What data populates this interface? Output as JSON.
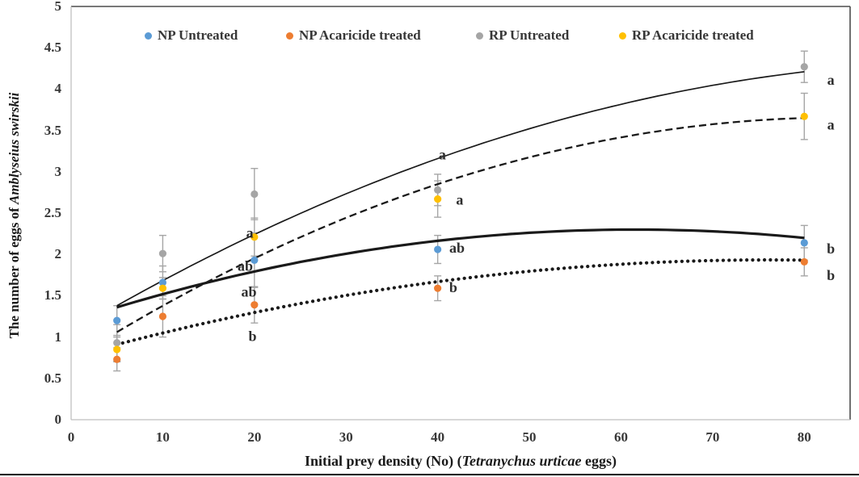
{
  "chart_data": {
    "type": "scatter",
    "description": "Scatter plot with fitted curves and error bars; eggs of Amblyseius swirskii vs initial prey density",
    "xlabel_prefix": "Initial prey density (No) (",
    "xlabel_italic": "Tetranychus urticae",
    "xlabel_suffix": " eggs)",
    "ylabel_prefix": "The number of eggs of ",
    "ylabel_italic": "Amblyseius swirskii",
    "xlim": [
      0,
      85
    ],
    "ylim": [
      0,
      5
    ],
    "grid": false,
    "legend_position": "top",
    "x_ticks": {
      "values": [
        0,
        10,
        20,
        30,
        40,
        50,
        60,
        70,
        80
      ],
      "labels": [
        "0",
        "10",
        "20",
        "30",
        "40",
        "50",
        "60",
        "70",
        "80"
      ]
    },
    "y_ticks": {
      "values": [
        0,
        0.5,
        1,
        1.5,
        2,
        2.5,
        3,
        3.5,
        4,
        4.5,
        5
      ],
      "labels": [
        "0",
        "0.5",
        "1",
        "1.5",
        "2",
        "2.5",
        "3",
        "3.5",
        "4",
        "4.5",
        "5"
      ]
    },
    "x": [
      5,
      10,
      20,
      40,
      80
    ],
    "series": [
      {
        "name": "NP Untreated",
        "color": "#5B9BD5",
        "y": [
          1.2,
          1.66,
          1.93,
          2.06,
          2.14
        ],
        "err": [
          0.18,
          0.2,
          0.33,
          0.17,
          0.21
        ],
        "fit": {
          "type": "quadratic",
          "a": -0.00029455,
          "b": 0.03623,
          "c": 1.18622
        },
        "line": {
          "width": 3.2,
          "dash": "solid"
        }
      },
      {
        "name": "NP Acaricide treated",
        "color": "#ED7D31",
        "y": [
          0.73,
          1.25,
          1.39,
          1.59,
          1.91
        ],
        "err": [
          0.14,
          0.25,
          0.22,
          0.15,
          0.17
        ],
        "fit": {
          "type": "quadratic",
          "a": -0.00020286,
          "b": 0.030843,
          "c": 0.760857
        },
        "line": {
          "width": 4.2,
          "dash": "dot"
        }
      },
      {
        "name": "RP Untreated",
        "color": "#A5A5A5",
        "y": [
          0.93,
          2.01,
          2.73,
          2.78,
          4.27
        ],
        "err": [
          0.22,
          0.22,
          0.31,
          0.19,
          0.19
        ],
        "fit": {
          "type": "quadratic",
          "a": -0.000328,
          "b": 0.06561,
          "c": 1.06
        },
        "line": {
          "width": 1.7,
          "dash": "solid"
        }
      },
      {
        "name": "RP Acaricide treated",
        "color": "#FFC000",
        "y": [
          0.85,
          1.59,
          2.21,
          2.67,
          3.67
        ],
        "err": [
          0.15,
          0.13,
          0.23,
          0.22,
          0.28
        ],
        "fit": {
          "type": "quadratic",
          "a": -0.0004152,
          "b": 0.069829,
          "c": 0.721238
        },
        "line": {
          "width": 2.3,
          "dash": "dash"
        }
      }
    ],
    "annotations": [
      {
        "text": "a",
        "x": 19.5,
        "y": 2.26
      },
      {
        "text": "ab",
        "x": 19.0,
        "y": 1.86
      },
      {
        "text": "ab",
        "x": 19.4,
        "y": 1.55
      },
      {
        "text": "b",
        "x": 19.8,
        "y": 1.01
      },
      {
        "text": "a",
        "x": 40.5,
        "y": 3.21
      },
      {
        "text": "a",
        "x": 42.4,
        "y": 2.66
      },
      {
        "text": "ab",
        "x": 42.1,
        "y": 2.08
      },
      {
        "text": "b",
        "x": 41.7,
        "y": 1.6
      },
      {
        "text": "a",
        "x": 82.9,
        "y": 4.11
      },
      {
        "text": "a",
        "x": 82.9,
        "y": 3.57
      },
      {
        "text": "b",
        "x": 82.9,
        "y": 2.07
      },
      {
        "text": "b",
        "x": 82.9,
        "y": 1.75
      }
    ]
  }
}
